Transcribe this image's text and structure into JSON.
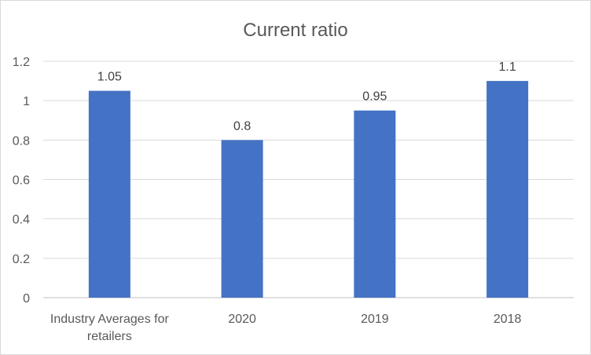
{
  "chart_data": {
    "type": "bar",
    "title": "Current ratio",
    "categories": [
      "Industry Averages for retailers",
      "2020",
      "2019",
      "2018"
    ],
    "category_lines": [
      [
        "Industry Averages for",
        "retailers"
      ],
      [
        "2020"
      ],
      [
        "2019"
      ],
      [
        "2018"
      ]
    ],
    "values": [
      1.05,
      0.8,
      0.95,
      1.1
    ],
    "data_labels": [
      "1.05",
      "0.8",
      "0.95",
      "1.1"
    ],
    "yticks": [
      0,
      0.2,
      0.4,
      0.6,
      0.8,
      1,
      1.2
    ],
    "ytick_labels": [
      "0",
      "0.2",
      "0.4",
      "0.6",
      "0.8",
      "1",
      "1.2"
    ],
    "xlabel": "",
    "ylabel": "",
    "ylim": [
      0,
      1.2
    ],
    "grid": true,
    "legend": "none",
    "bar_color": "#4472c4"
  }
}
